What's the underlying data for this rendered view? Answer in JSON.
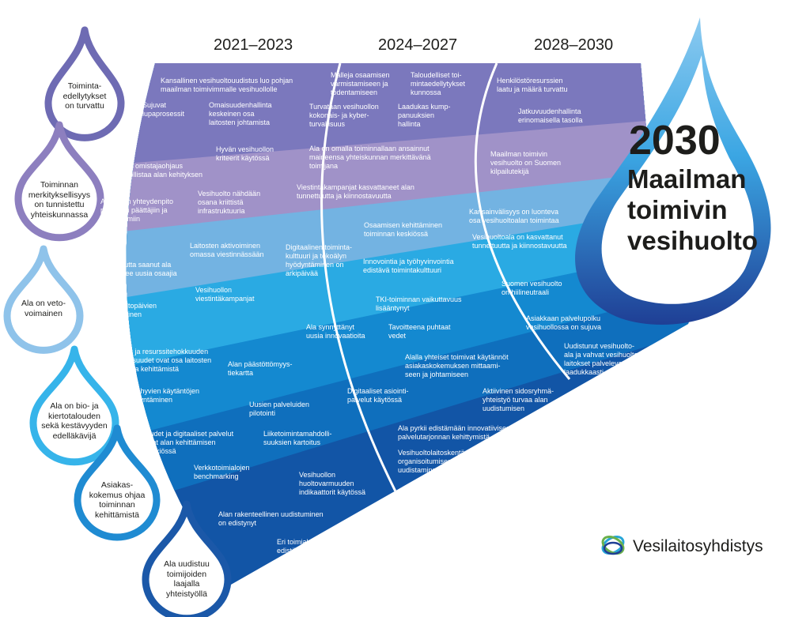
{
  "periods": [
    "2021–2023",
    "2024–2027",
    "2028–2030"
  ],
  "goal": {
    "year": "2030",
    "line1": "Maailman",
    "line2": "toimivin",
    "line3": "vesihuolto"
  },
  "colors": {
    "band1": "#7b78bd",
    "band2": "#a092c8",
    "band3": "#73b3e2",
    "band4": "#2aaae3",
    "band5": "#1489d0",
    "band6": "#0f6fbd",
    "band7": "#1255a6",
    "goal_drop": "#3ba6e3",
    "text_dark": "#1d1d1b"
  },
  "drops": [
    "Toiminta-\nedellytykset\non turvattu",
    "Toiminnan\nmerkityksellisyys\non tunnistettu\nyhteiskunnassa",
    "Ala on veto-\nvoimainen",
    "Ala on bio- ja\nkiertotalouden\nsekä kestävyyden\nedelläkävijä",
    "Asiakas-\nkokemus ohjaa\ntoiminnan\nkehittämistä",
    "Ala uudistuu\ntoimijoiden\nlaajalla\nyhteistyöllä"
  ],
  "texts": [
    "Kansallinen vesihuoltouudistus luo pohjan\nmaailman toimivimmalle vesihuollolle",
    "Sujuvat\nlupaprosessit",
    "Omaisuudenhallinta\nkeskeinen osa\nlaitosten johtamista",
    "Malleja osaamisen\nvarmistamiseen ja\ntodentamiseen",
    "Taloudelliset toi-\nmintaedellytykset\nkunnossa",
    "Turvataan vesihuollon\nkokonais- ja kyber-\nturvallisuus",
    "Laadukas kump-\npanuuksien\nhallinta",
    "Henkilöstöresurssien\nlaatu ja määrä turvattu",
    "Jatkuvuudenhallinta\nerinomaisella tasolla",
    "Selkeä omistajaohjaus\nmahdollistaa alan kehityksen",
    "Hyvän vesihuollon\nkriteerit käytössä",
    "Aktiivinen yhteydenpito\npoliittisiin päättäjiin ja\nsidosryhmiin",
    "Vesihuolto nähdään\nosana kriittistä\ninfrastruktuuria",
    "Ala on omalla toiminnallaan ansainnut\nmaineensa yhteiskunnan merkittävänä\ntoimijana",
    "Viestintäkampanjat kasvattaneet alan\ntunnettuutta ja kiinnostavuutta",
    "Maailman toimivin\nvesihuolto on Suomen\nkilpailutekijä",
    "Kansainvälisyys on luonteva\nosa vesihuoltoalan toimintaa",
    "Vesihuoltoala on kasvattanut\ntunnettuutta ja kiinnostavuutta",
    "Laitosten aktivoiminen\nomassa viestinnässään",
    "Tunnettuutta saanut ala\nhoukuttelee uusia osaajia",
    "Vesihuollon\nviestintäkampanjat",
    "Vesihuoltopäivien\nkehittäminen",
    "Digitaalinen toiminta-\nkulttuuri ja tekoälyn\nhyödyntäminen on\narkipäivää",
    "Osaamisen kehittäminen\ntoiminnan keskiössä",
    "Innovointia ja työhyvinvointia\nedistävä toimintakulttuuri",
    "Suomen vesihuolto\non hiilineutraali",
    "TKI-toiminnan vaikuttavuus\nlisääntynyt",
    "Ala synnyttänyt\nuusia innovaatioita",
    "Tavoitteena puhtaat\nvedet",
    "Asiakkaan palvelupolku\nvesihuollossa on sujuva",
    "Energia- ja resurssitehokkuuden\nmahdollisuudet ovat osa laitosten\nstrategista kehittämistä",
    "Alan päästöttömyys-\ntiekartta",
    "Uudistunut vesihuolto-\nala ja vahvat vesihuolto-\nlaitokset palvelevat\nlaadukkaasti",
    "Alalla yhteiset toimivat käytännöt\nasiakaskokemuksen mittaami-\nseen ja johtamiseen",
    "Alan hyvien käytäntöjen\nhyödyntäminen",
    "Digitaaliset asiointi-\npalvelut käytössä",
    "Aktiivinen sidosryhmä-\nyhteistyö turvaa alan\nuudistumisen",
    "Uusien palveluiden\npilotointi",
    "Uudet ja digitaaliset palvelut\novat alan kehittämisen\nkeskiössä",
    "Liiketoimintamahdolli-\nsuuksien kartoitus",
    "Ala pyrkii edistämään innovatiivisen\npalvelutarjonnan kehittymistä",
    "Verkkotoimialojen\nbenchmarking",
    "Vesihuoltolaitoskentän\norganisoitumisen\nuudistaminen",
    "Vesihuollon\nhuoltovarmuuden\nindikaattorit käytössä",
    "Alan rakenteellinen uudistuminen\non edistynyt",
    "Eri toimialojen yhteistyön\nedistäminen"
  ],
  "brand": "Vesilaitosyhdistys"
}
